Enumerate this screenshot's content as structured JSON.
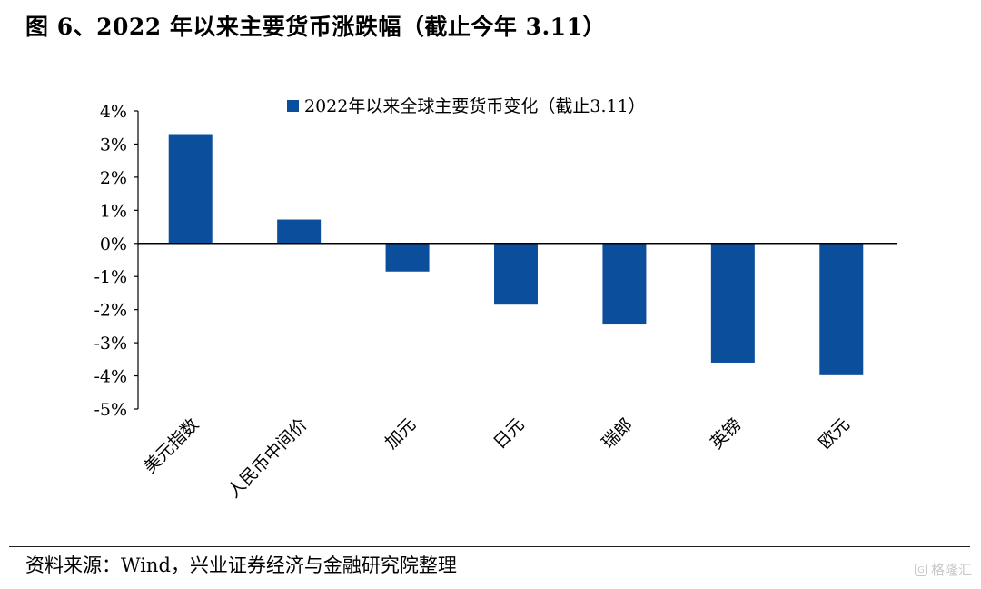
{
  "page": {
    "title": "图 6、2022 年以来主要货币涨跌幅（截止今年 3.11）",
    "source": "资料来源：Wind，兴业证券经济与金融研究院整理",
    "watermark": "格隆汇"
  },
  "colors": {
    "bar": "#0b4f9c",
    "axis": "#000000",
    "text": "#000000"
  },
  "chart_data": {
    "type": "bar",
    "title": "",
    "xlabel": "",
    "ylabel": "",
    "legend": {
      "placement": "top-center"
    },
    "categories": [
      "美元指数",
      "人民币中间价",
      "加元",
      "日元",
      "瑞郎",
      "英镑",
      "欧元"
    ],
    "series": [
      {
        "name": "2022年以来全球主要货币变化（截止3.11）",
        "values": [
          3.3,
          0.72,
          -0.85,
          -1.85,
          -2.45,
          -3.6,
          -3.98
        ]
      }
    ],
    "ylim": [
      -5,
      4
    ],
    "yticks": [
      4,
      3,
      2,
      1,
      0,
      -1,
      -2,
      -3,
      -4,
      -5
    ],
    "ytick_labels": [
      "4%",
      "3%",
      "2%",
      "1%",
      "0%",
      "-1%",
      "-2%",
      "-3%",
      "-4%",
      "-5%"
    ],
    "grid": false
  }
}
